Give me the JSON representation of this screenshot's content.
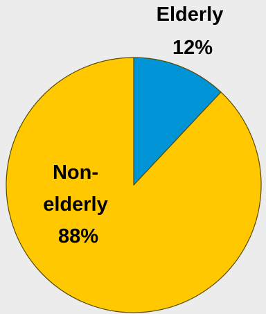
{
  "chart_data": {
    "type": "pie",
    "slices": [
      {
        "label_lines": [
          "Elderly",
          "12%"
        ],
        "value": 12,
        "color": "#0093d6"
      },
      {
        "label_lines": [
          "Non-",
          "elderly",
          "88%"
        ],
        "value": 88,
        "color": "#ffc800"
      }
    ],
    "start": "12 o'clock",
    "direction": "clockwise",
    "outline_color": "#5a4a00",
    "background": "#ececec"
  }
}
